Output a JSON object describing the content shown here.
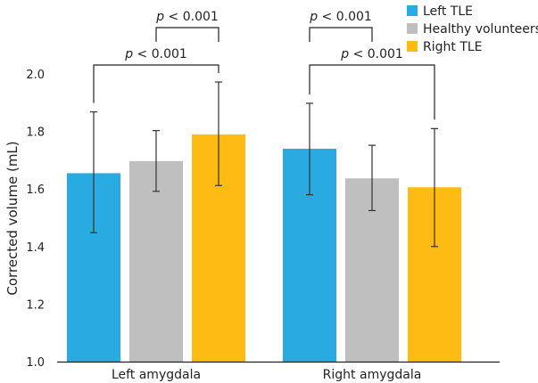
{
  "chart_data": {
    "type": "bar",
    "categories": [
      "Left amygdala",
      "Right amygdala"
    ],
    "series": [
      {
        "name": "Left TLE",
        "color": "#29ABE2",
        "values": [
          1.655,
          1.74
        ],
        "error_low": [
          1.448,
          1.58
        ],
        "error_high": [
          1.868,
          1.898
        ]
      },
      {
        "name": "Healthy volunteers",
        "color": "#BFBFBF",
        "values": [
          1.697,
          1.637
        ],
        "error_low": [
          1.592,
          1.525
        ],
        "error_high": [
          1.803,
          1.752
        ]
      },
      {
        "name": "Right TLE",
        "color": "#FDBB13",
        "values": [
          1.79,
          1.606
        ],
        "error_low": [
          1.612,
          1.4
        ],
        "error_high": [
          1.972,
          1.81
        ]
      }
    ],
    "ylabel": "Corrected volume (mL)",
    "xlabel": "",
    "ylim": [
      1.0,
      2.0
    ],
    "yticks": [
      "1.0",
      "1.2",
      "1.4",
      "1.6",
      "1.8",
      "2.0"
    ],
    "ytick_values": [
      1.0,
      1.2,
      1.4,
      1.6,
      1.8,
      2.0
    ],
    "legend_position": "top-right",
    "annotations": [
      {
        "category": 0,
        "from_series": 1,
        "to_series": 2,
        "level": "upper",
        "p_label": "p",
        "p_value": "< 0.001"
      },
      {
        "category": 0,
        "from_series": 0,
        "to_series": 2,
        "level": "lower",
        "p_label": "p",
        "p_value": "< 0.001"
      },
      {
        "category": 1,
        "from_series": 0,
        "to_series": 1,
        "level": "upper",
        "p_label": "p",
        "p_value": "< 0.001"
      },
      {
        "category": 1,
        "from_series": 0,
        "to_series": 2,
        "level": "lower",
        "p_label": "p",
        "p_value": "< 0.001"
      }
    ]
  }
}
